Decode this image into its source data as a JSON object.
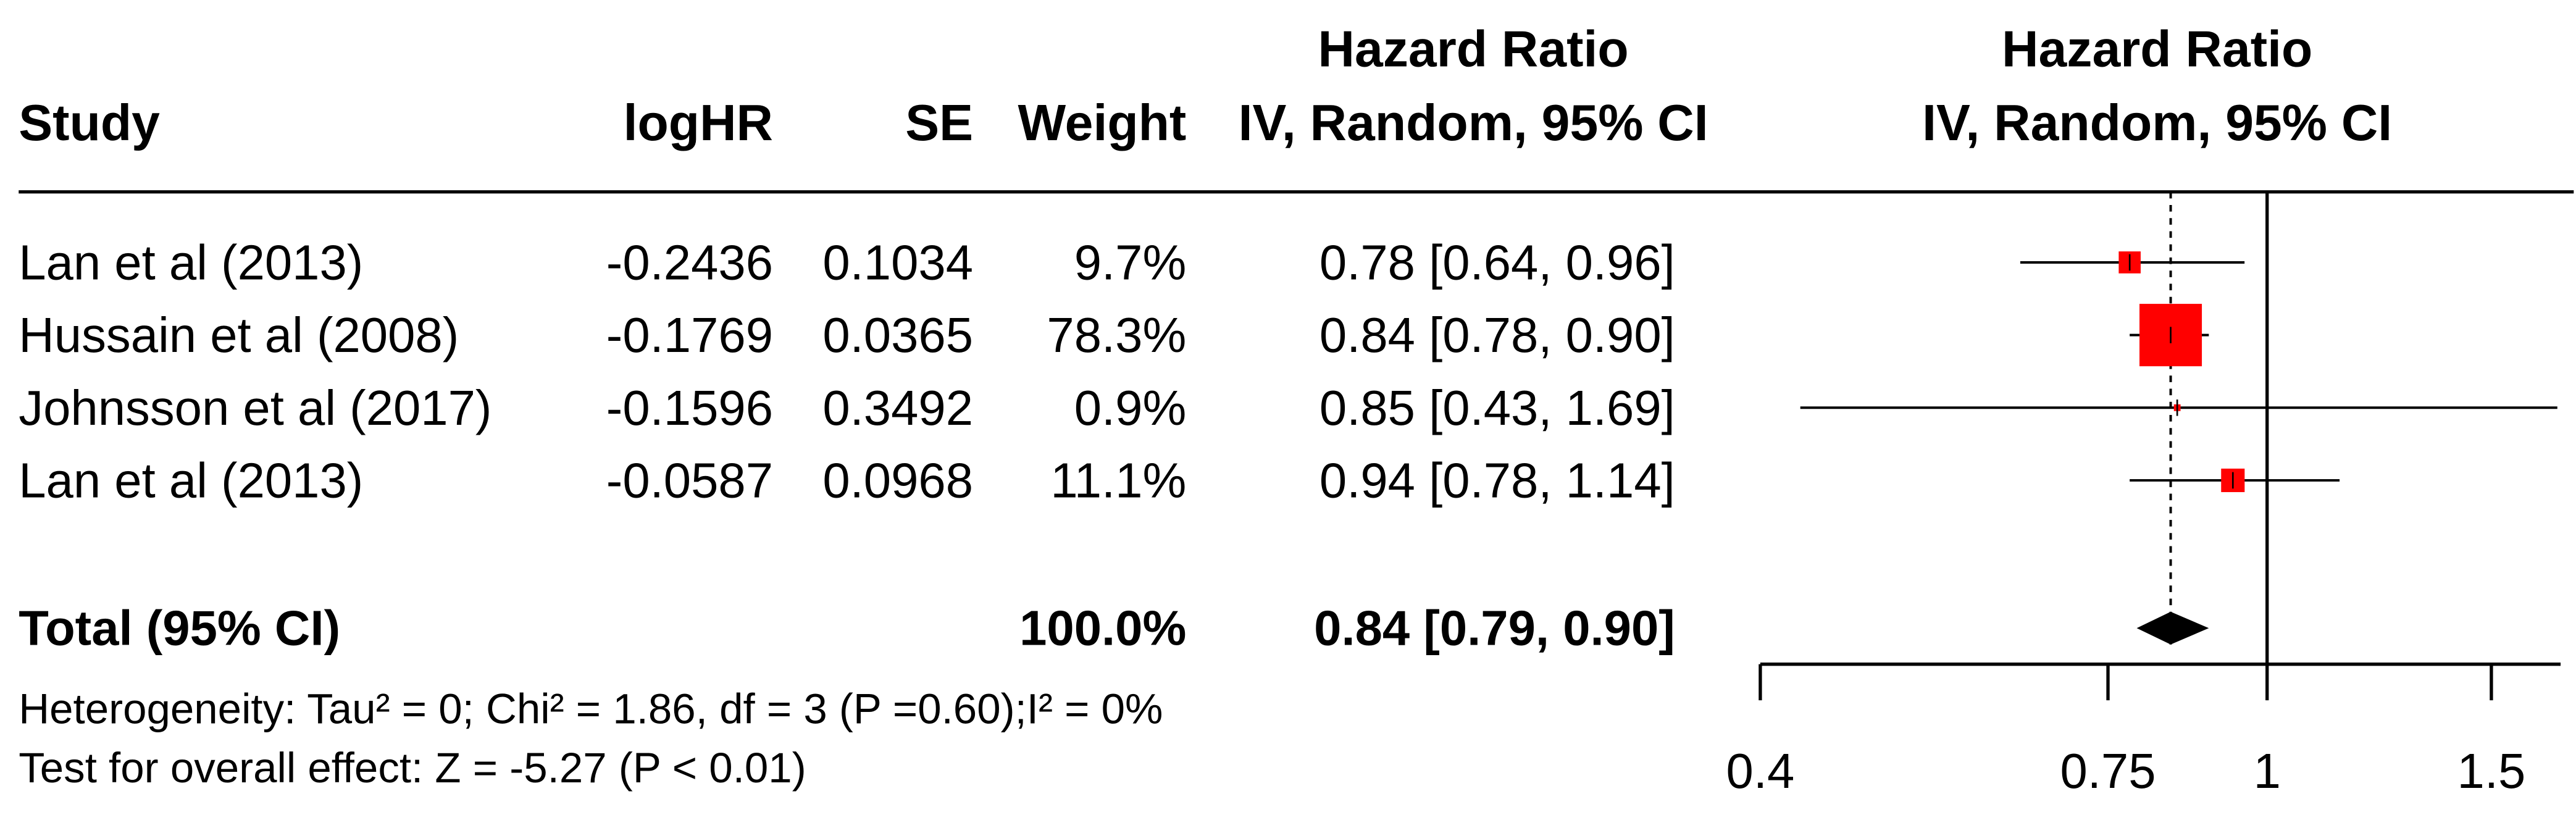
{
  "chart_data": {
    "type": "forest",
    "header": {
      "study": "Study",
      "loghr": "logHR",
      "se": "SE",
      "weight": "Weight",
      "table_effect_title": "Hazard Ratio",
      "table_effect_sub": "IV, Random, 95% CI",
      "plot_title": "Hazard Ratio",
      "plot_sub": "IV, Random, 95% CI"
    },
    "studies": [
      "Lan et al (2013)",
      "Hussain et al (2008)",
      "Johnsson et al (2017)",
      "Lan et al (2013)"
    ],
    "loghr": [
      -0.2436,
      -0.1769,
      -0.1596,
      -0.0587
    ],
    "se": [
      0.1034,
      0.0365,
      0.3492,
      0.0968
    ],
    "weights": [
      9.7,
      78.3,
      0.9,
      11.1
    ],
    "weight_labels": [
      "9.7%",
      "78.3%",
      "0.9%",
      "11.1%"
    ],
    "hr": [
      0.78,
      0.84,
      0.85,
      0.94
    ],
    "ci_low": [
      0.64,
      0.78,
      0.43,
      0.78
    ],
    "ci_high": [
      0.96,
      0.9,
      1.69,
      1.14
    ],
    "hr_labels": [
      "0.78 [0.64, 0.96]",
      "0.84 [0.78, 0.90]",
      "0.85 [0.43, 1.69]",
      "0.94 [0.78, 1.14]"
    ],
    "total": {
      "label": "Total (95% CI)",
      "weight_label": "100.0%",
      "hr": 0.84,
      "ci_low": 0.79,
      "ci_high": 0.9,
      "hr_label": "0.84 [0.79, 0.90]"
    },
    "heterogeneity": "Heterogeneity: Tau² = 0; Chi² = 1.86, df = 3 (P =0.60);I² = 0%",
    "overall_effect": "Test for overall effect: Z = -5.27 (P < 0.01)",
    "xscale": "log",
    "xlim": [
      0.4,
      1.7
    ],
    "xticks": [
      0.4,
      0.75,
      1,
      1.5
    ],
    "reference": 1,
    "color": "#ff0000"
  }
}
